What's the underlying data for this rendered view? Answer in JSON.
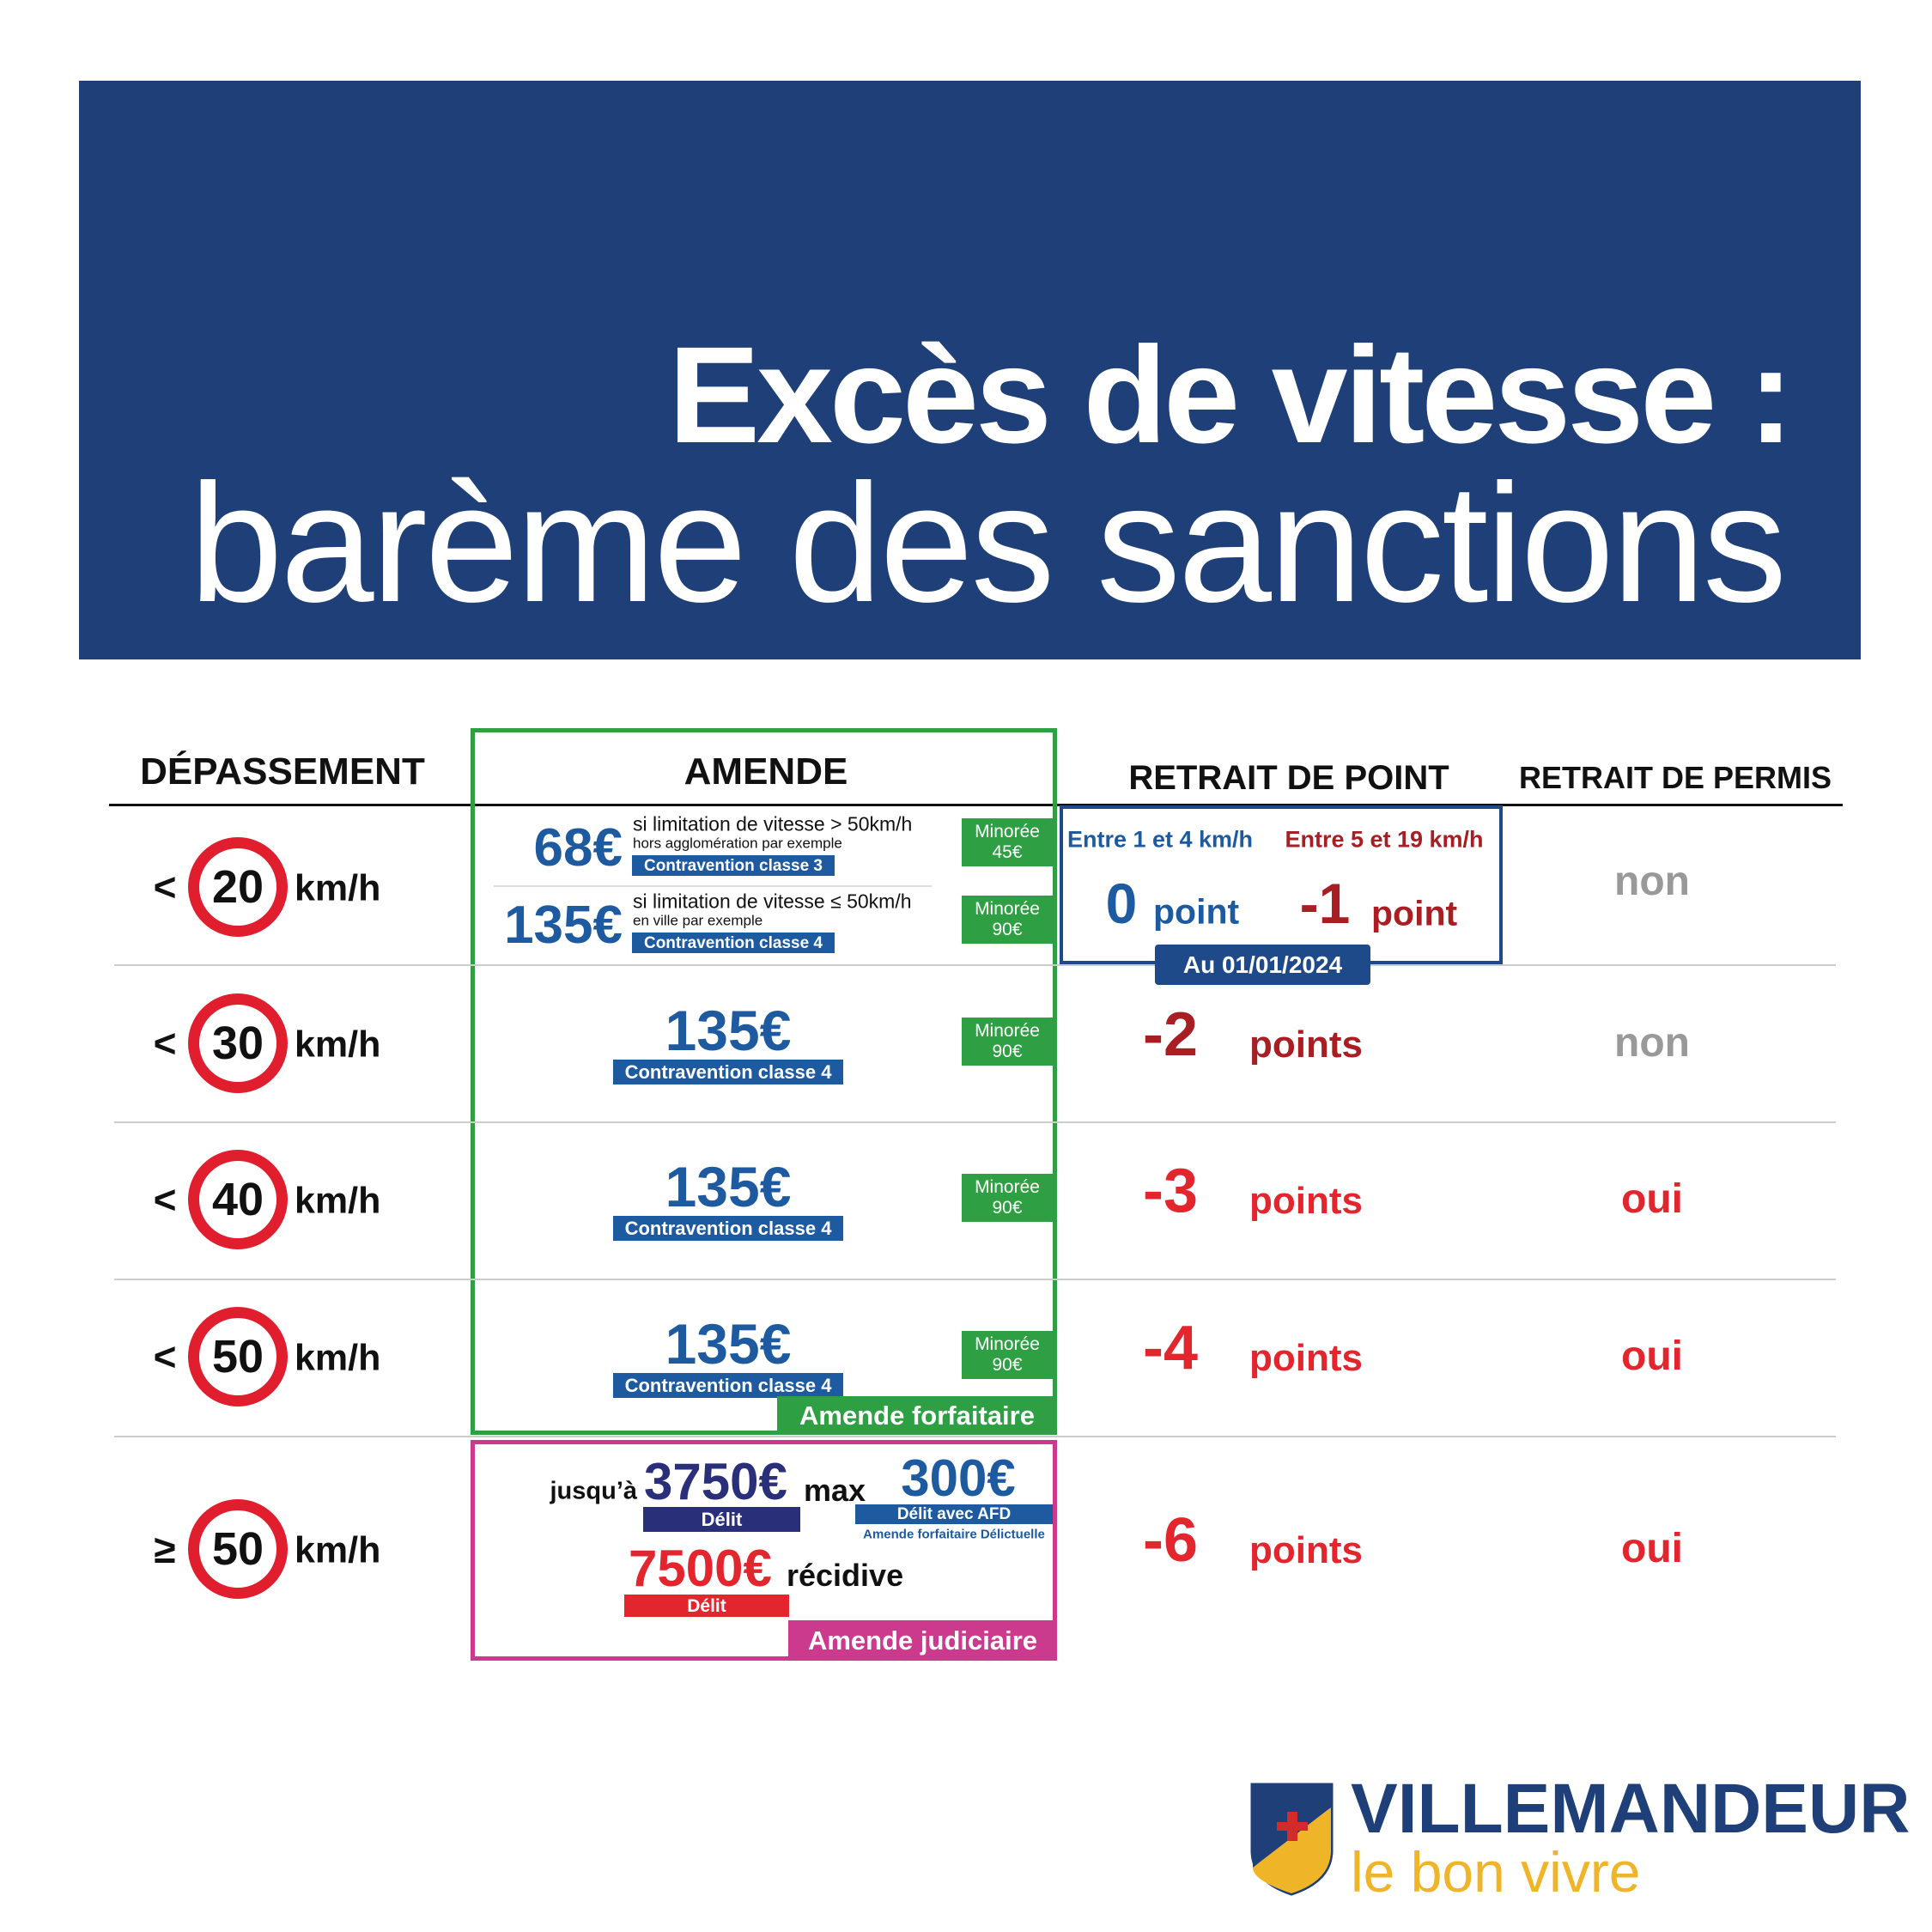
{
  "header": {
    "title": "Excès de vitesse :",
    "subtitle": "barème des sanctions"
  },
  "table": {
    "columns": [
      "DÉPASSEMENT",
      "AMENDE",
      "RETRAIT DE POINT",
      "RETRAIT DE PERMIS"
    ],
    "rows": [
      {
        "speed": {
          "operator": "<",
          "limit": "20",
          "unit": "km/h"
        },
        "fines": [
          {
            "amount": "68€",
            "condition": "si limitation de vitesse > 50km/h",
            "example": "hors agglomération par exemple",
            "class": "Contravention classe 3",
            "reduced": {
              "label": "Minorée",
              "amount": "45€"
            }
          },
          {
            "amount": "135€",
            "condition": "si limitation de vitesse ≤ 50km/h",
            "example": "en ville par exemple",
            "class": "Contravention classe 4",
            "reduced": {
              "label": "Minorée",
              "amount": "90€"
            }
          }
        ],
        "points": {
          "ranges": [
            {
              "label": "Entre 1 et 4 km/h",
              "value": "0",
              "unit": "point"
            },
            {
              "label": "Entre 5 et 19 km/h",
              "value": "-1",
              "unit": "point"
            }
          ],
          "effective": "Au 01/01/2024"
        },
        "licence": "non"
      },
      {
        "speed": {
          "operator": "<",
          "limit": "30",
          "unit": "km/h"
        },
        "fine": {
          "amount": "135€",
          "class": "Contravention classe 4",
          "reduced": {
            "label": "Minorée",
            "amount": "90€"
          }
        },
        "points": {
          "value": "-2",
          "unit": "points"
        },
        "licence": "non"
      },
      {
        "speed": {
          "operator": "<",
          "limit": "40",
          "unit": "km/h"
        },
        "fine": {
          "amount": "135€",
          "class": "Contravention classe 4",
          "reduced": {
            "label": "Minorée",
            "amount": "90€"
          }
        },
        "points": {
          "value": "-3",
          "unit": "points"
        },
        "licence": "oui"
      },
      {
        "speed": {
          "operator": "<",
          "limit": "50",
          "unit": "km/h"
        },
        "fine": {
          "amount": "135€",
          "class": "Contravention classe 4",
          "reduced": {
            "label": "Minorée",
            "amount": "90€"
          }
        },
        "points": {
          "value": "-4",
          "unit": "points"
        },
        "licence": "oui"
      },
      {
        "speed": {
          "operator": "≥",
          "limit": "50",
          "unit": "km/h"
        },
        "fines": {
          "max": {
            "prefix": "jusqu’à",
            "amount": "3750€",
            "suffix": "max",
            "type": "Délit"
          },
          "afd": {
            "amount": "300€",
            "type": "Délit avec AFD",
            "note": "Amende forfaitaire Délictuelle"
          },
          "repeat": {
            "amount": "7500€",
            "suffix": "récidive",
            "type": "Délit"
          }
        },
        "points": {
          "value": "-6",
          "unit": "points"
        },
        "licence": "oui"
      }
    ],
    "box_labels": {
      "fixed": "Amende forfaitaire",
      "judicial": "Amende judiciaire"
    }
  },
  "logo": {
    "name": "VILLEMANDEUR",
    "tagline": "le bon vivre"
  }
}
